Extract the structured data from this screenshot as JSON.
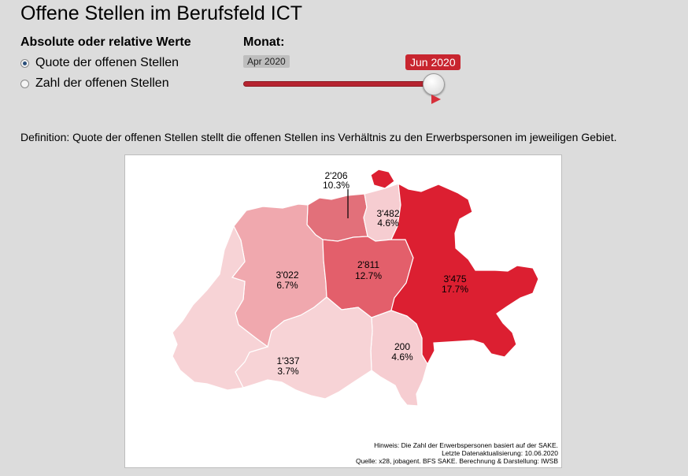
{
  "title": "Offene Stellen im Berufsfeld ICT",
  "controls": {
    "mode_heading": "Absolute oder relative Werte",
    "options": [
      "Quote der offenen Stellen",
      "Zahl der offenen Stellen"
    ],
    "selected_option": "Quote der offenen Stellen",
    "month_heading": "Monat:",
    "slider": {
      "min_label": "Apr 2020",
      "current_label": "Jun 2020",
      "value_fraction": 1.0
    }
  },
  "definition": "Definition: Quote der offenen Stellen stellt die offenen Stellen ins Verhältnis zu den Erwerbspersonen im jeweiligen Gebiet.",
  "map": {
    "regions": [
      {
        "count": "2'206",
        "rate": "10.3%",
        "color": "#e2707a"
      },
      {
        "count": "3'482",
        "rate": "4.6%",
        "color": "#f6cdd1"
      },
      {
        "count": "3'022",
        "rate": "6.7%",
        "color": "#f0a8ae"
      },
      {
        "count": "2'811",
        "rate": "12.7%",
        "color": "#e35f6b"
      },
      {
        "count": "3'475",
        "rate": "17.7%",
        "color": "#dc1f31"
      },
      {
        "count": "200",
        "rate": "4.6%",
        "color": "#f6cdd1"
      },
      {
        "count": "1'337",
        "rate": "3.7%",
        "color": "#f7d3d6"
      },
      {
        "count": "",
        "rate": "",
        "color": "#f7d3d6"
      }
    ],
    "notes": [
      "Hinweis: Die Zahl der Erwerbspersonen basiert auf der SAKE.",
      "Letzte Datenaktualisierung: 10.06.2020",
      "Quelle: x28, jobagent. BFS SAKE. Berechnung & Darstellung: IWSB"
    ]
  }
}
